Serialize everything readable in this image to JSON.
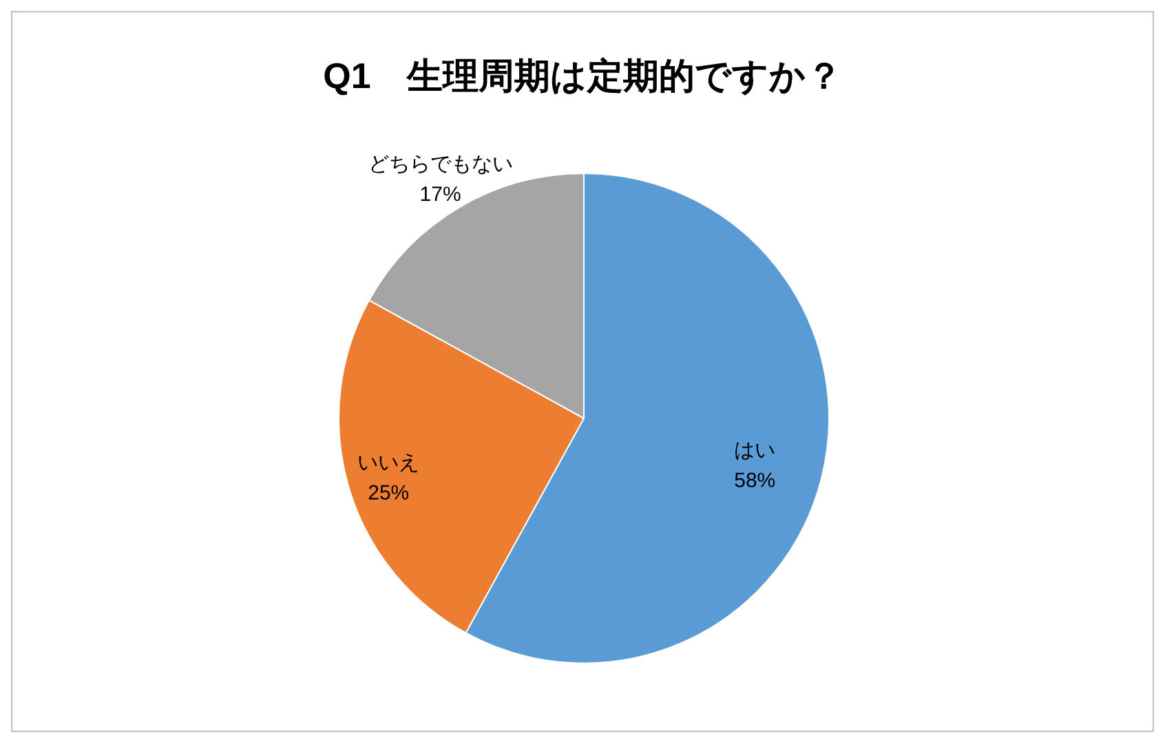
{
  "chart_data": {
    "type": "pie",
    "title": "Q1　生理周期は定期的ですか？",
    "categories": [
      "はい",
      "いいえ",
      "どちらでもない"
    ],
    "values": [
      58,
      25,
      17
    ],
    "colors": [
      "#5b9bd5",
      "#ed7d31",
      "#a5a5a5"
    ],
    "value_labels": [
      "58%",
      "25%",
      "17%"
    ]
  }
}
